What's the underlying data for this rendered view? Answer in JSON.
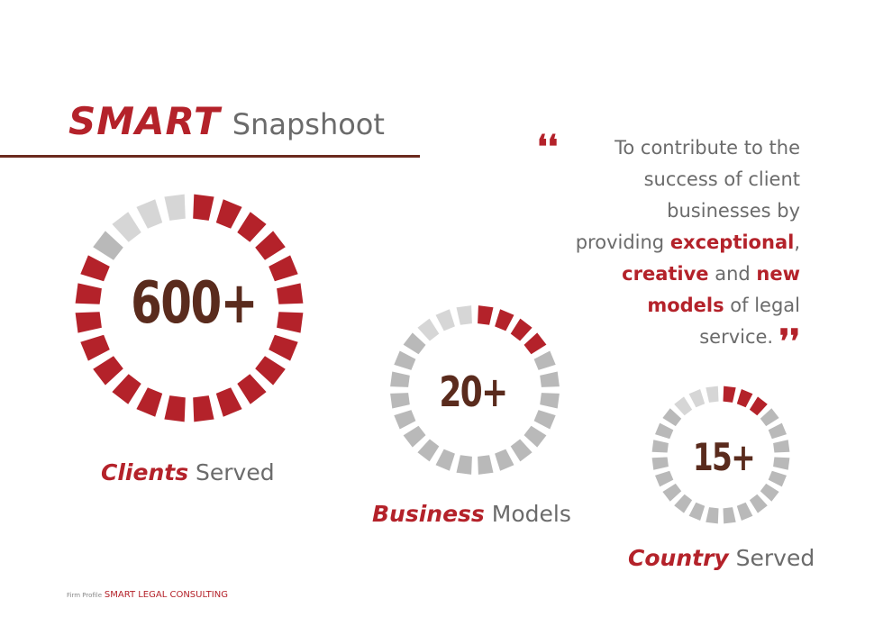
{
  "header": {
    "brand": "SMART",
    "subtitle": "Snapshoot"
  },
  "quote": {
    "open_mark": "❛❛",
    "close_mark": "❜❜",
    "line1": "To contribute to the",
    "line2": "success of client",
    "line3": "businesses by",
    "line4_pre": "providing ",
    "line4_hl": "exceptional",
    "line4_post": ",",
    "line5_hl1": "creative",
    "line5_mid": " and ",
    "line5_hl2": "new",
    "line6_hl": "models",
    "line6_post": " of legal",
    "line7": "service."
  },
  "stats": [
    {
      "value": "600+",
      "label_hl": "Clients",
      "label_rest": " Served",
      "segments": 24,
      "red_segments": 20,
      "red_start_index": 0
    },
    {
      "value": "20+",
      "label_hl": "Business",
      "label_rest": " Models",
      "segments": 24,
      "red_segments": 4,
      "red_start_index": 0
    },
    {
      "value": "15+",
      "label_hl": "Country",
      "label_rest": " Served",
      "segments": 24,
      "red_segments": 3,
      "red_start_index": 0
    }
  ],
  "colors": {
    "accent": "#b4222a",
    "gray": "#b9b9b9",
    "light_gray": "#d6d6d6",
    "number": "#5a2b1d"
  },
  "footer": {
    "small": "Firm Profile",
    "name": "SMART LEGAL CONSULTING"
  }
}
